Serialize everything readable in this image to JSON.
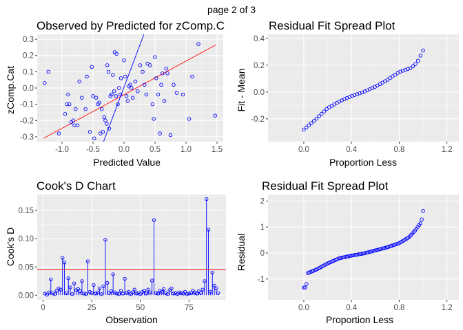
{
  "page_label": "page 2 of 3",
  "colors": {
    "panel_bg": "#ebebeb",
    "grid_major": "#ffffff",
    "grid_minor": "#f5f5f5",
    "points": "#0000ff",
    "ref_line": "#ff0000",
    "tick_text": "#4d4d4d"
  },
  "chart_data": [
    {
      "type": "scatter",
      "title": "Observed by Predicted for zComp.C",
      "xlabel": "Predicted Value",
      "ylabel": "zComp.Cat",
      "xlim": [
        -1.4,
        1.6
      ],
      "ylim": [
        -0.33,
        0.33
      ],
      "xticks": [
        -1.0,
        -0.5,
        0.0,
        0.5,
        1.0,
        1.5
      ],
      "xtick_labels": [
        "-1.0",
        "-0.5",
        "0.0",
        "0.5",
        "1.0",
        "1.5"
      ],
      "yticks": [
        -0.3,
        -0.2,
        -0.1,
        0.0,
        0.1,
        0.2,
        0.3
      ],
      "ytick_labels": [
        "-0.3",
        "-0.2",
        "-0.1",
        "0.0",
        "0.1",
        "0.2",
        "0.3"
      ],
      "fit_line_red": [
        [
          -1.3,
          -0.31
        ],
        [
          1.48,
          0.265
        ]
      ],
      "fit_line_blue": [
        [
          -0.33,
          -0.33
        ],
        [
          0.32,
          0.33
        ]
      ],
      "points": [
        [
          -1.28,
          0.03
        ],
        [
          -1.22,
          0.1
        ],
        [
          -1.05,
          -0.28
        ],
        [
          -0.95,
          -0.16
        ],
        [
          -0.92,
          -0.1
        ],
        [
          -0.9,
          -0.04
        ],
        [
          -0.88,
          -0.1
        ],
        [
          -0.85,
          -0.21
        ],
        [
          -0.82,
          -0.2
        ],
        [
          -0.8,
          -0.23
        ],
        [
          -0.78,
          -0.13
        ],
        [
          -0.75,
          -0.23
        ],
        [
          -0.72,
          0.04
        ],
        [
          -0.68,
          -0.06
        ],
        [
          -0.62,
          -0.13
        ],
        [
          -0.6,
          0.07
        ],
        [
          -0.55,
          -0.27
        ],
        [
          -0.52,
          0.13
        ],
        [
          -0.5,
          -0.05
        ],
        [
          -0.48,
          -0.31
        ],
        [
          -0.45,
          -0.06
        ],
        [
          -0.42,
          -0.1
        ],
        [
          -0.4,
          -0.09
        ],
        [
          -0.38,
          -0.28
        ],
        [
          -0.36,
          -0.13
        ],
        [
          -0.34,
          -0.27
        ],
        [
          -0.32,
          -0.18
        ],
        [
          -0.3,
          -0.2
        ],
        [
          -0.28,
          -0.22
        ],
        [
          -0.27,
          0.14
        ],
        [
          -0.25,
          0.1
        ],
        [
          -0.24,
          -0.25
        ],
        [
          -0.22,
          -0.05
        ],
        [
          -0.2,
          -0.04
        ],
        [
          -0.18,
          0.08
        ],
        [
          -0.16,
          -0.02
        ],
        [
          -0.15,
          0.22
        ],
        [
          -0.13,
          -0.05
        ],
        [
          -0.12,
          0.21
        ],
        [
          -0.1,
          -0.1
        ],
        [
          -0.08,
          0.0
        ],
        [
          -0.06,
          -0.04
        ],
        [
          -0.05,
          0.06
        ],
        [
          0.0,
          0.17
        ],
        [
          0.02,
          0.07
        ],
        [
          0.04,
          -0.05
        ],
        [
          0.06,
          -0.08
        ],
        [
          0.08,
          0.01
        ],
        [
          0.1,
          0.02
        ],
        [
          0.12,
          0.0
        ],
        [
          0.14,
          -0.06
        ],
        [
          0.18,
          0.04
        ],
        [
          0.22,
          -0.02
        ],
        [
          0.26,
          0.14
        ],
        [
          0.3,
          0.1
        ],
        [
          0.33,
          0.02
        ],
        [
          0.36,
          -0.04
        ],
        [
          0.38,
          0.15
        ],
        [
          0.42,
          0.14
        ],
        [
          0.46,
          -0.1
        ],
        [
          0.48,
          -0.19
        ],
        [
          0.5,
          0.19
        ],
        [
          0.52,
          0.06
        ],
        [
          0.55,
          -0.04
        ],
        [
          0.58,
          -0.28
        ],
        [
          0.6,
          0.02
        ],
        [
          0.62,
          0.09
        ],
        [
          0.65,
          -0.08
        ],
        [
          0.68,
          0.12
        ],
        [
          0.7,
          0.09
        ],
        [
          0.75,
          -0.29
        ],
        [
          0.8,
          0.02
        ],
        [
          0.85,
          -0.03
        ],
        [
          0.95,
          -0.04
        ],
        [
          1.05,
          -0.19
        ],
        [
          1.1,
          0.07
        ],
        [
          1.2,
          0.27
        ],
        [
          1.47,
          -0.17
        ]
      ]
    },
    {
      "type": "scatter",
      "title": "Residual Fit Spread Plot",
      "xlabel": "Proportion Less",
      "ylabel": "Fit - Mean",
      "xlim": [
        -0.3,
        1.3
      ],
      "ylim": [
        -0.37,
        0.43
      ],
      "xticks": [
        0.0,
        0.4,
        0.8,
        1.2
      ],
      "xtick_labels": [
        "0.0",
        "0.4",
        "0.8",
        "1.2"
      ],
      "yticks": [
        -0.2,
        0.0,
        0.2,
        0.4
      ],
      "ytick_labels": [
        "-0.2",
        "0.0",
        "0.2",
        "0.4"
      ],
      "quantiles": [
        [
          0.0,
          -0.28
        ],
        [
          0.08,
          -0.22
        ],
        [
          0.2,
          -0.12
        ],
        [
          0.3,
          -0.07
        ],
        [
          0.4,
          -0.03
        ],
        [
          0.5,
          0.0
        ],
        [
          0.6,
          0.04
        ],
        [
          0.7,
          0.09
        ],
        [
          0.8,
          0.15
        ],
        [
          0.9,
          0.18
        ],
        [
          0.95,
          0.22
        ],
        [
          1.0,
          0.31
        ]
      ]
    },
    {
      "type": "bar",
      "title": "Cook's D Chart",
      "xlabel": "Observation",
      "ylabel": "Cook's D",
      "xlim": [
        -3,
        94
      ],
      "ylim": [
        -0.008,
        0.178
      ],
      "xticks": [
        0,
        25,
        50,
        75
      ],
      "xtick_labels": [
        "0",
        "25",
        "50",
        "75"
      ],
      "yticks": [
        0.0,
        0.05,
        0.1,
        0.15
      ],
      "ytick_labels": [
        "0.00",
        "0.05",
        "0.10",
        "0.15"
      ],
      "threshold": 0.045,
      "values": [
        0.003,
        0.001,
        0.005,
        0.028,
        0.004,
        0.002,
        0.008,
        0.012,
        0.01,
        0.066,
        0.058,
        0.004,
        0.03,
        0.014,
        0.002,
        0.021,
        0.009,
        0.011,
        0.007,
        0.025,
        0.003,
        0.002,
        0.06,
        0.006,
        0.004,
        0.018,
        0.003,
        0.005,
        0.012,
        0.002,
        0.016,
        0.098,
        0.022,
        0.004,
        0.007,
        0.037,
        0.005,
        0.003,
        0.002,
        0.008,
        0.003,
        0.029,
        0.004,
        0.006,
        0.002,
        0.005,
        0.01,
        0.003,
        0.004,
        0.002,
        0.006,
        0.008,
        0.003,
        0.01,
        0.005,
        0.026,
        0.133,
        0.004,
        0.003,
        0.008,
        0.006,
        0.011,
        0.004,
        0.002,
        0.009,
        0.012,
        0.003,
        0.004,
        0.002,
        0.005,
        0.004,
        0.003,
        0.006,
        0.002,
        0.003,
        0.004,
        0.008,
        0.005,
        0.003,
        0.007,
        0.004,
        0.01,
        0.025,
        0.17,
        0.116,
        0.006,
        0.04,
        0.017,
        0.012,
        0.004
      ]
    },
    {
      "type": "scatter",
      "title": "Residual Fit Spread Plot",
      "xlabel": "Proportion Less",
      "ylabel": "Residual",
      "xlim": [
        -0.3,
        1.3
      ],
      "ylim": [
        -1.8,
        2.25
      ],
      "xticks": [
        0.0,
        0.4,
        0.8,
        1.2
      ],
      "xtick_labels": [
        "0.0",
        "0.4",
        "0.8",
        "1.2"
      ],
      "yticks": [
        -1,
        0,
        1,
        2
      ],
      "ytick_labels": [
        "-1",
        "0",
        "1",
        "2"
      ],
      "quantiles": [
        [
          0.0,
          -1.33
        ],
        [
          0.02,
          -1.33
        ],
        [
          0.03,
          -0.78
        ],
        [
          0.1,
          -0.65
        ],
        [
          0.2,
          -0.4
        ],
        [
          0.3,
          -0.2
        ],
        [
          0.4,
          -0.1
        ],
        [
          0.5,
          -0.02
        ],
        [
          0.6,
          0.1
        ],
        [
          0.7,
          0.22
        ],
        [
          0.8,
          0.38
        ],
        [
          0.88,
          0.6
        ],
        [
          0.93,
          0.85
        ],
        [
          0.97,
          1.1
        ],
        [
          0.985,
          1.18
        ],
        [
          1.0,
          1.62
        ]
      ]
    }
  ]
}
